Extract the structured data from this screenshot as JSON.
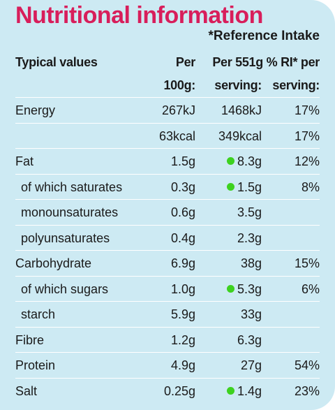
{
  "title": "Nutritional information",
  "subtitle": "*Reference Intake",
  "headers": {
    "typical": "Typical values",
    "per100_line1": "Per",
    "per100_line2": "100g:",
    "serving_line1": "Per 551g % RI* per",
    "serving_line2a": "serving:",
    "serving_line2b": "serving:"
  },
  "colors": {
    "title": "#d81e5b",
    "panel": "#cdeaf3",
    "dot": "#3dd21f"
  },
  "rows": [
    {
      "label": "Energy",
      "indent": false,
      "per100": "267kJ",
      "serving": "1468kJ",
      "ri": "17%",
      "dot": false
    },
    {
      "label": "",
      "indent": false,
      "per100": "63kcal",
      "serving": "349kcal",
      "ri": "17%",
      "dot": false
    },
    {
      "label": "Fat",
      "indent": false,
      "per100": "1.5g",
      "serving": "8.3g",
      "ri": "12%",
      "dot": true
    },
    {
      "label": "of which saturates",
      "indent": true,
      "per100": "0.3g",
      "serving": "1.5g",
      "ri": "8%",
      "dot": true
    },
    {
      "label": "monounsaturates",
      "indent": true,
      "per100": "0.6g",
      "serving": "3.5g",
      "ri": "",
      "dot": false
    },
    {
      "label": "polyunsaturates",
      "indent": true,
      "per100": "0.4g",
      "serving": "2.3g",
      "ri": "",
      "dot": false
    },
    {
      "label": "Carbohydrate",
      "indent": false,
      "per100": "6.9g",
      "serving": "38g",
      "ri": "15%",
      "dot": false
    },
    {
      "label": "of which sugars",
      "indent": true,
      "per100": "1.0g",
      "serving": "5.3g",
      "ri": "6%",
      "dot": true
    },
    {
      "label": "starch",
      "indent": true,
      "per100": "5.9g",
      "serving": "33g",
      "ri": "",
      "dot": false
    },
    {
      "label": "Fibre",
      "indent": false,
      "per100": "1.2g",
      "serving": "6.3g",
      "ri": "",
      "dot": false
    },
    {
      "label": "Protein",
      "indent": false,
      "per100": "4.9g",
      "serving": "27g",
      "ri": "54%",
      "dot": false
    },
    {
      "label": "Salt",
      "indent": false,
      "per100": "0.25g",
      "serving": "1.4g",
      "ri": "23%",
      "dot": true
    }
  ]
}
